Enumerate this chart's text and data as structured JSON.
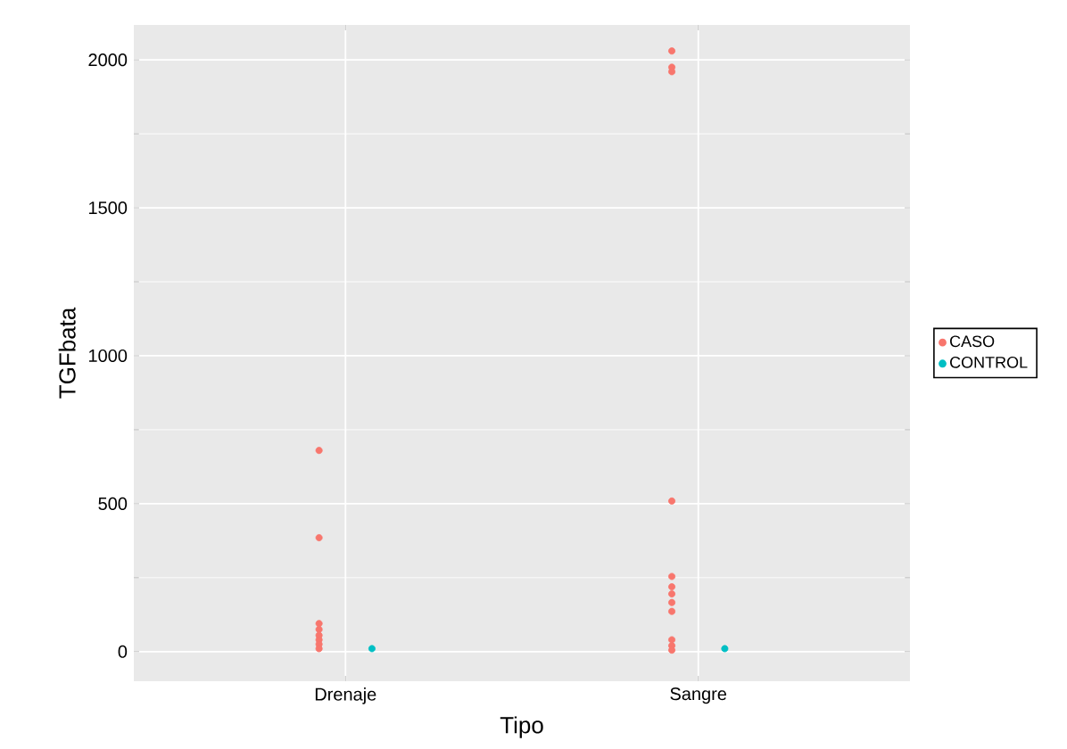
{
  "chart_data": {
    "type": "scatter",
    "xlabel": "Tipo",
    "ylabel": "TGFbata",
    "categories": [
      "Drenaje",
      "Sangre"
    ],
    "ylim": [
      -100,
      2118
    ],
    "yticks": [
      0,
      500,
      1000,
      1500,
      2000
    ],
    "grid": true,
    "legend": "right",
    "marker": "circle",
    "series": [
      {
        "name": "CASO",
        "color": "#f8766d",
        "x": [
          "Drenaje",
          "Drenaje",
          "Drenaje",
          "Drenaje",
          "Drenaje",
          "Drenaje",
          "Drenaje",
          "Drenaje",
          "Sangre",
          "Sangre",
          "Sangre",
          "Sangre",
          "Sangre",
          "Sangre",
          "Sangre",
          "Sangre",
          "Sangre",
          "Sangre",
          "Sangre",
          "Sangre"
        ],
        "values": [
          680,
          385,
          95,
          75,
          55,
          40,
          25,
          10,
          2030,
          1975,
          1960,
          509,
          254,
          219,
          195,
          166,
          136,
          40,
          20,
          5
        ]
      },
      {
        "name": "CONTROL",
        "color": "#00bfc4",
        "x": [
          "Drenaje",
          "Sangre"
        ],
        "values": [
          10,
          10
        ]
      }
    ]
  }
}
